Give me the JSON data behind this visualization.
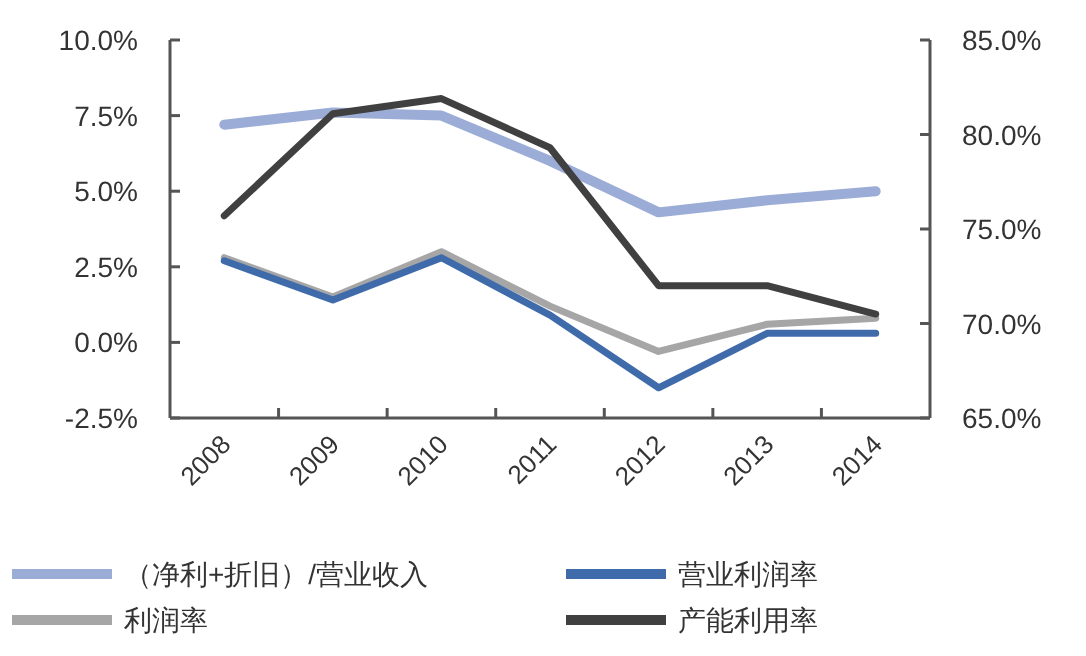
{
  "chart_data": {
    "type": "line",
    "categories": [
      "2008",
      "2009",
      "2010",
      "2011",
      "2012",
      "2013",
      "2014"
    ],
    "series": [
      {
        "name": "（净利+折旧）/营业收入",
        "color": "#9badd6",
        "values": [
          7.2,
          7.6,
          7.5,
          6.0,
          4.3,
          4.7,
          5.0
        ]
      },
      {
        "name": "营业利润率",
        "color": "#3f6bab",
        "values": [
          2.7,
          1.4,
          2.8,
          0.9,
          -1.5,
          0.3,
          0.3
        ]
      },
      {
        "name": "利润率",
        "color": "#a6a6a6",
        "values": [
          2.8,
          1.5,
          3.0,
          1.2,
          -0.3,
          0.6,
          0.8
        ]
      },
      {
        "name": "产能利用率",
        "color": "#404040",
        "values": [
          75.7,
          81.1,
          81.9,
          79.3,
          72.0,
          72.0,
          70.5
        ],
        "axis": "y2"
      }
    ],
    "ylim": [
      -2.5,
      10
    ],
    "yticks": [
      {
        "value": -2.5,
        "label": "-2.5%"
      },
      {
        "value": 0,
        "label": "0.0%"
      },
      {
        "value": 2.5,
        "label": "2.5%"
      },
      {
        "value": 5,
        "label": "5.0%"
      },
      {
        "value": 7.5,
        "label": "7.5%"
      },
      {
        "value": 10,
        "label": "10.0%"
      }
    ],
    "y2lim": [
      65,
      85
    ],
    "y2ticks": [
      {
        "value": 65,
        "label": "65.0%"
      },
      {
        "value": 70,
        "label": "70.0%"
      },
      {
        "value": 75,
        "label": "75.0%"
      },
      {
        "value": 80,
        "label": "80.0%"
      },
      {
        "value": 85,
        "label": "85.0%"
      }
    ],
    "legend": "bottom"
  }
}
